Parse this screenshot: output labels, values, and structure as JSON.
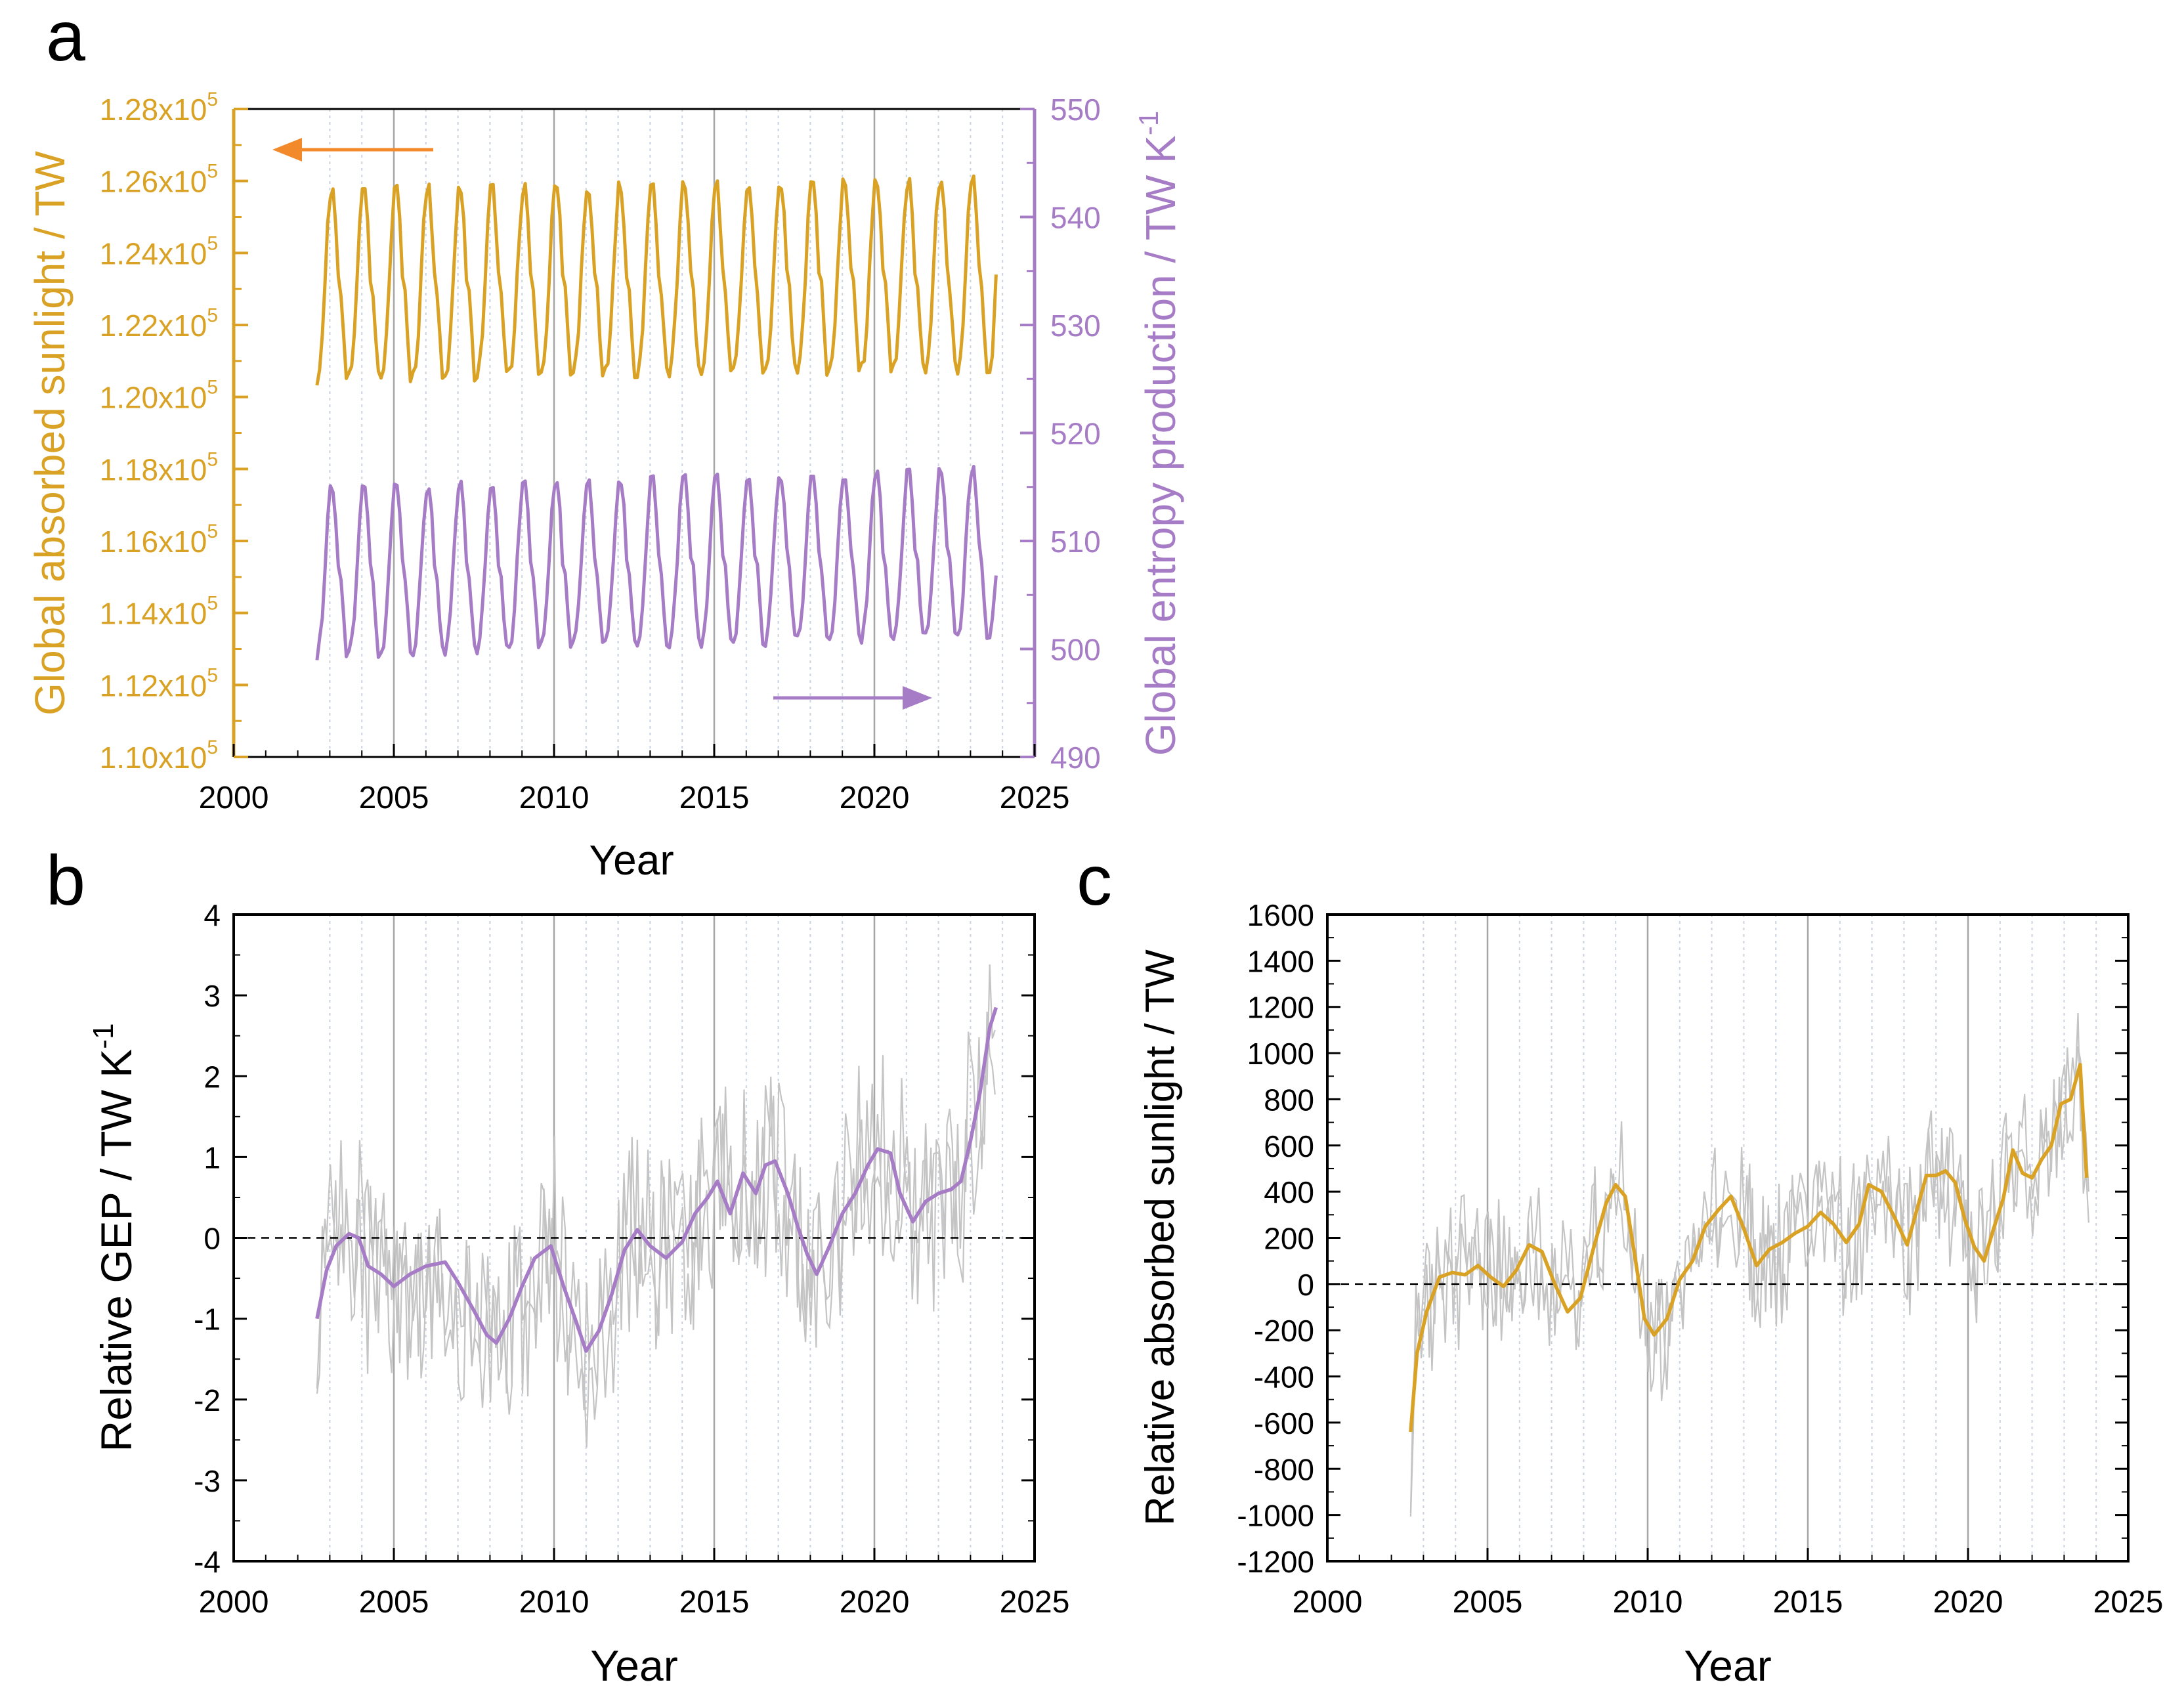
{
  "colors": {
    "sunlight": "#d9a224",
    "entropy": "#a57cc5",
    "arrow_orange": "#f28a2b",
    "raw": "#c4c4c4",
    "axis": "#000000",
    "grid_major": "#a6a6a6",
    "grid_minor": "#c9d3df"
  },
  "chart_data": [
    {
      "panel": "a",
      "type": "line",
      "x_ticks": [
        "2000",
        "2005",
        "2010",
        "2015",
        "2020",
        "2025"
      ],
      "xlabel": "Year",
      "xlim": [
        2000,
        2025
      ],
      "y_left": {
        "label": "Global absorbed sunlight / TW",
        "ylim": [
          110000,
          128000
        ],
        "ticks": [
          {
            "mant": "1.10x10",
            "exp": "5"
          },
          {
            "mant": "1.12x10",
            "exp": "5"
          },
          {
            "mant": "1.14x10",
            "exp": "5"
          },
          {
            "mant": "1.16x10",
            "exp": "5"
          },
          {
            "mant": "1.18x10",
            "exp": "5"
          },
          {
            "mant": "1.20x10",
            "exp": "5"
          },
          {
            "mant": "1.22x10",
            "exp": "5"
          },
          {
            "mant": "1.24x10",
            "exp": "5"
          },
          {
            "mant": "1.26x10",
            "exp": "5"
          },
          {
            "mant": "1.28x10",
            "exp": "5"
          }
        ]
      },
      "y_right": {
        "label_main": "Global entropy production / TW K",
        "label_sup": "-1",
        "ylim": [
          490,
          550
        ],
        "ticks": [
          "490",
          "500",
          "510",
          "520",
          "530",
          "540",
          "550"
        ]
      },
      "series": [
        {
          "name": "Global absorbed sunlight",
          "axis": "left",
          "x_start": 2002.6,
          "x_end": 2023.8,
          "min": 120500,
          "peak": 125800,
          "shoulder": 123500,
          "trend_per_year": 15,
          "end_value": 123400
        },
        {
          "name": "Global entropy production",
          "axis": "right",
          "x_start": 2002.6,
          "x_end": 2023.8,
          "min": 499.5,
          "peak": 515.0,
          "shoulder": 508.0,
          "trend_per_year": 0.09,
          "end_value": 506.8
        }
      ]
    },
    {
      "panel": "b",
      "type": "line",
      "x_ticks": [
        "2000",
        "2005",
        "2010",
        "2015",
        "2020",
        "2025"
      ],
      "xlabel": "Year",
      "ylabel_main": "Relative GEP / TW K",
      "ylabel_sup": "-1",
      "xlim": [
        2000,
        2025
      ],
      "ylim": [
        -4,
        4
      ],
      "y_ticks": [
        "-4",
        "-3",
        "-2",
        "-1",
        "0",
        "1",
        "2",
        "3",
        "4"
      ],
      "reference_line": 0,
      "smoothed": {
        "x": [
          2002.6,
          2002.9,
          2003.2,
          2003.6,
          2003.9,
          2004.2,
          2004.6,
          2005.0,
          2005.5,
          2006.0,
          2006.6,
          2007.0,
          2007.5,
          2007.9,
          2008.2,
          2008.6,
          2009.0,
          2009.4,
          2009.9,
          2010.3,
          2010.7,
          2011.0,
          2011.4,
          2011.8,
          2012.2,
          2012.6,
          2013.0,
          2013.5,
          2014.0,
          2014.4,
          2014.8,
          2015.1,
          2015.5,
          2015.9,
          2016.3,
          2016.6,
          2016.9,
          2017.3,
          2017.6,
          2017.9,
          2018.2,
          2018.6,
          2019.0,
          2019.4,
          2019.8,
          2020.1,
          2020.5,
          2020.8,
          2021.2,
          2021.6,
          2022.0,
          2022.4,
          2022.7,
          2023.0,
          2023.3,
          2023.6,
          2023.8
        ],
        "y": [
          -1.0,
          -0.4,
          -0.1,
          0.05,
          0.0,
          -0.35,
          -0.45,
          -0.6,
          -0.45,
          -0.35,
          -0.3,
          -0.55,
          -0.9,
          -1.2,
          -1.3,
          -1.0,
          -0.6,
          -0.25,
          -0.1,
          -0.6,
          -1.05,
          -1.4,
          -1.15,
          -0.7,
          -0.15,
          0.1,
          -0.1,
          -0.25,
          -0.05,
          0.3,
          0.5,
          0.7,
          0.3,
          0.8,
          0.55,
          0.9,
          0.95,
          0.55,
          0.15,
          -0.2,
          -0.45,
          -0.1,
          0.3,
          0.55,
          0.9,
          1.1,
          1.05,
          0.55,
          0.2,
          0.45,
          0.55,
          0.6,
          0.7,
          1.2,
          1.8,
          2.6,
          2.85
        ]
      },
      "raw_series": {
        "name": "monthly anomaly",
        "amplitude": 1.3,
        "x_start": 2002.6,
        "x_end": 2023.8
      }
    },
    {
      "panel": "c",
      "type": "line",
      "x_ticks": [
        "2000",
        "2005",
        "2010",
        "2015",
        "2020",
        "2025"
      ],
      "xlabel": "Year",
      "ylabel": "Relative absorbed sunlight / TW",
      "xlim": [
        2000,
        2025
      ],
      "ylim": [
        -1200,
        1600
      ],
      "y_ticks": [
        "-1200",
        "-1000",
        "-800",
        "-600",
        "-400",
        "-200",
        "0",
        "200",
        "400",
        "600",
        "800",
        "1000",
        "1200",
        "1400",
        "1600"
      ],
      "reference_line": 0,
      "smoothed": {
        "x": [
          2002.6,
          2002.8,
          2003.1,
          2003.5,
          2003.9,
          2004.3,
          2004.7,
          2005.1,
          2005.5,
          2005.9,
          2006.3,
          2006.7,
          2007.1,
          2007.5,
          2007.9,
          2008.3,
          2008.7,
          2009.0,
          2009.3,
          2009.6,
          2009.9,
          2010.2,
          2010.6,
          2011.0,
          2011.4,
          2011.8,
          2012.2,
          2012.6,
          2013.0,
          2013.4,
          2013.8,
          2014.2,
          2014.6,
          2015.0,
          2015.4,
          2015.8,
          2016.2,
          2016.6,
          2016.9,
          2017.3,
          2017.7,
          2018.1,
          2018.4,
          2018.7,
          2019.0,
          2019.3,
          2019.6,
          2019.9,
          2020.2,
          2020.5,
          2020.8,
          2021.1,
          2021.4,
          2021.7,
          2022.0,
          2022.3,
          2022.6,
          2022.9,
          2023.2,
          2023.5,
          2023.7
        ],
        "y": [
          -640,
          -300,
          -120,
          30,
          50,
          40,
          80,
          30,
          -10,
          60,
          170,
          140,
          0,
          -120,
          -60,
          150,
          350,
          430,
          380,
          120,
          -150,
          -220,
          -150,
          20,
          100,
          250,
          320,
          380,
          240,
          80,
          150,
          180,
          220,
          250,
          310,
          260,
          180,
          260,
          430,
          400,
          290,
          170,
          320,
          470,
          470,
          490,
          440,
          280,
          160,
          100,
          240,
          370,
          580,
          480,
          460,
          540,
          600,
          780,
          800,
          950,
          460
        ]
      },
      "raw_series": {
        "name": "monthly anomaly",
        "amplitude": 330,
        "x_start": 2002.6,
        "x_end": 2023.8
      }
    }
  ],
  "panels": {
    "a": {
      "tag": "a"
    },
    "b": {
      "tag": "b"
    },
    "c": {
      "tag": "c"
    }
  }
}
